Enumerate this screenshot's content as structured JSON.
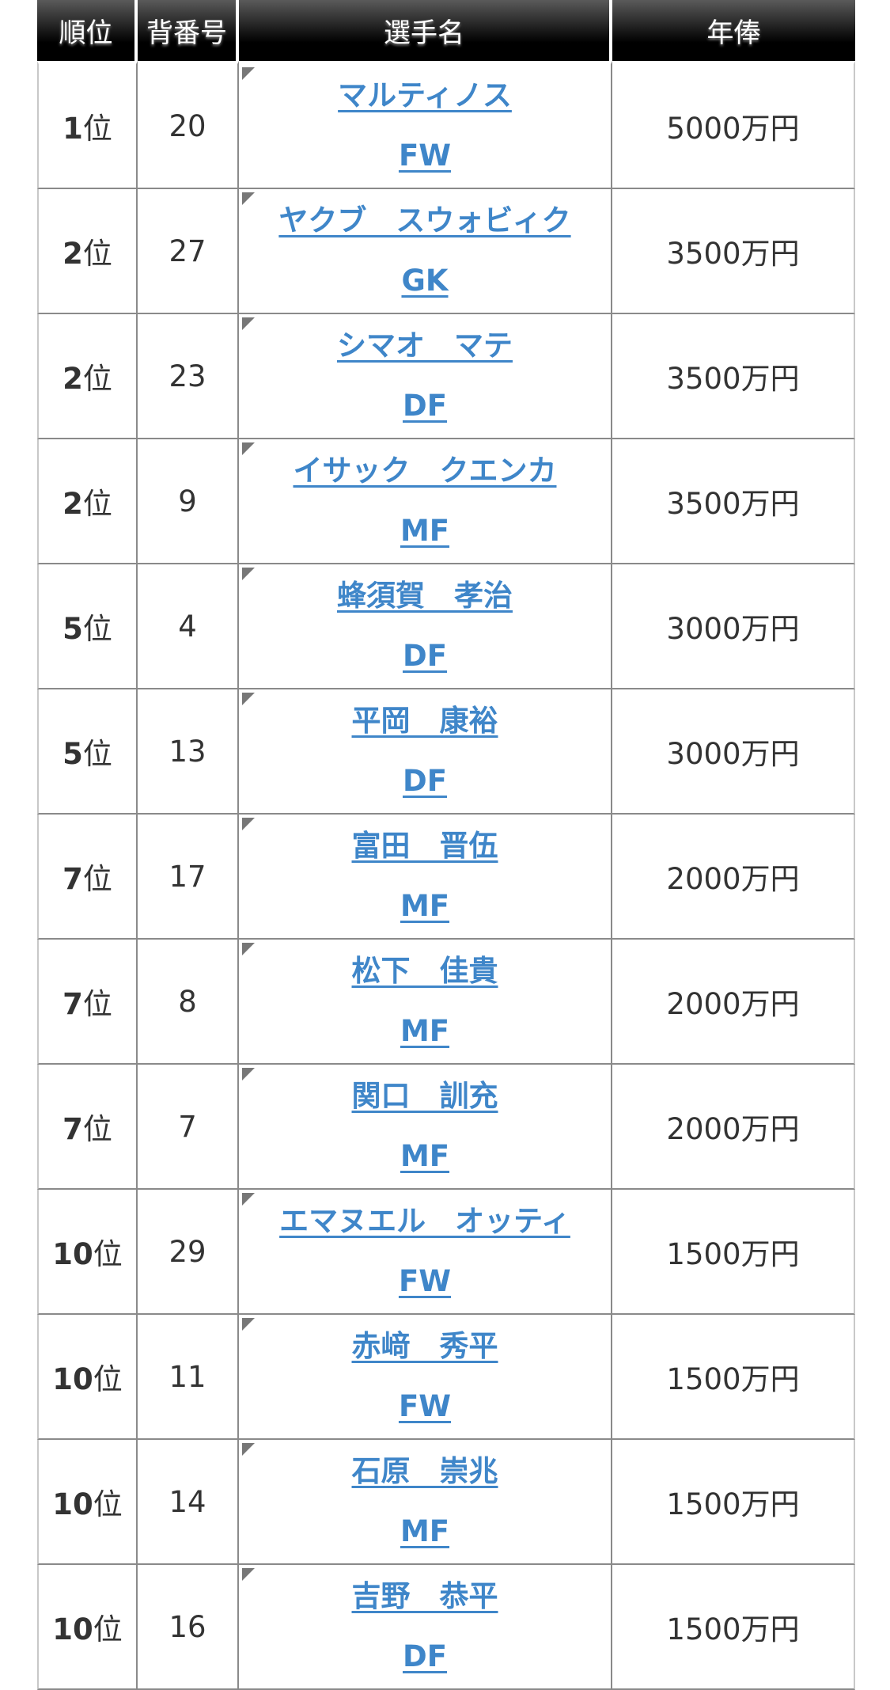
{
  "headers": [
    "順位",
    "背番号",
    "選手名",
    "年俸"
  ],
  "rows": [
    {
      "rank_num": "1",
      "rank_suffix": "位",
      "number": "20",
      "name": "マルティノス",
      "position": "FW",
      "salary": "5000万円"
    },
    {
      "rank_num": "2",
      "rank_suffix": "位",
      "number": "27",
      "name": "ヤクブ　スウォビィク",
      "position": "GK",
      "salary": "3500万円"
    },
    {
      "rank_num": "2",
      "rank_suffix": "位",
      "number": "23",
      "name": "シマオ　マテ",
      "position": "DF",
      "salary": "3500万円"
    },
    {
      "rank_num": "2",
      "rank_suffix": "位",
      "number": "9",
      "name": "イサック　クエンカ",
      "position": "MF",
      "salary": "3500万円"
    },
    {
      "rank_num": "5",
      "rank_suffix": "位",
      "number": "4",
      "name": "蜂須賀　孝治",
      "position": "DF",
      "salary": "3000万円"
    },
    {
      "rank_num": "5",
      "rank_suffix": "位",
      "number": "13",
      "name": "平岡　康裕",
      "position": "DF",
      "salary": "3000万円"
    },
    {
      "rank_num": "7",
      "rank_suffix": "位",
      "number": "17",
      "name": "富田　晋伍",
      "position": "MF",
      "salary": "2000万円"
    },
    {
      "rank_num": "7",
      "rank_suffix": "位",
      "number": "8",
      "name": "松下　佳貴",
      "position": "MF",
      "salary": "2000万円"
    },
    {
      "rank_num": "7",
      "rank_suffix": "位",
      "number": "7",
      "name": "関口　訓充",
      "position": "MF",
      "salary": "2000万円"
    },
    {
      "rank_num": "10",
      "rank_suffix": "位",
      "number": "29",
      "name": "エマヌエル　オッティ",
      "position": "FW",
      "salary": "1500万円"
    },
    {
      "rank_num": "10",
      "rank_suffix": "位",
      "number": "11",
      "name": "赤﨑　秀平",
      "position": "FW",
      "salary": "1500万円"
    },
    {
      "rank_num": "10",
      "rank_suffix": "位",
      "number": "14",
      "name": "石原　崇兆",
      "position": "MF",
      "salary": "1500万円"
    },
    {
      "rank_num": "10",
      "rank_suffix": "位",
      "number": "16",
      "name": "吉野　恭平",
      "position": "DF",
      "salary": "1500万円"
    }
  ],
  "colors": {
    "link": "#3f86c9",
    "header_bg": "#000000"
  },
  "icons": {
    "corner": "corner-triangle-icon"
  }
}
